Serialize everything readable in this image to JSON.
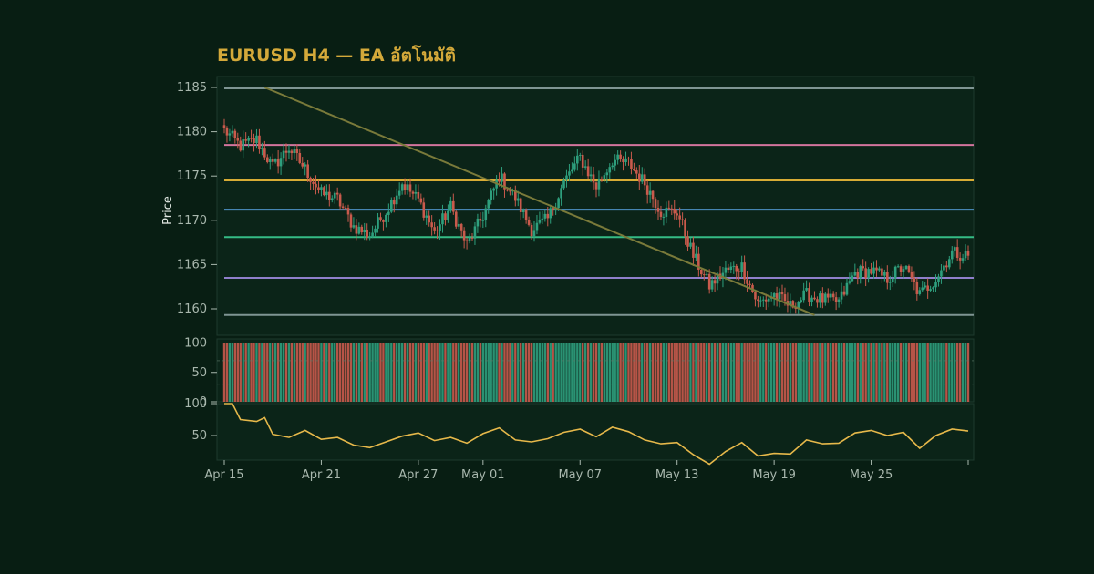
{
  "chart_data": {
    "type": "candlestick",
    "title": "EURUSD H4 — EA อัตโนมัติ",
    "ylabel": "Price",
    "ylim": [
      1157.5,
      1186.5
    ],
    "yticks": [
      "1185",
      "1180",
      "1175",
      "1170",
      "1165",
      "1160"
    ],
    "xlim": [
      "2024-04-15",
      "2024-05-31"
    ],
    "xticks": [
      {
        "date": "2024-04-15",
        "label": "Apr 15"
      },
      {
        "date": "2024-04-21",
        "label": "Apr 21"
      },
      {
        "date": "2024-04-27",
        "label": "Apr 27"
      },
      {
        "date": "2024-05-01",
        "label": "May 01"
      },
      {
        "date": "2024-05-07",
        "label": "May 07"
      },
      {
        "date": "2024-05-13",
        "label": "May 13"
      },
      {
        "date": "2024-05-19",
        "label": "May 19"
      },
      {
        "date": "2024-05-25",
        "label": "May 25"
      }
    ],
    "horizontal_levels": [
      {
        "price": 1184.9,
        "color": "#7f9593"
      },
      {
        "price": 1178.5,
        "color": "#d3759d"
      },
      {
        "price": 1174.5,
        "color": "#d8ac35"
      },
      {
        "price": 1171.2,
        "color": "#4f93c8"
      },
      {
        "price": 1168.1,
        "color": "#35bb85"
      },
      {
        "price": 1163.5,
        "color": "#8f7fcb"
      },
      {
        "price": 1159.3,
        "color": "#7f9593"
      }
    ],
    "trendline": {
      "start_date": "2024-04-17 12:00",
      "start_price": 1185.0,
      "end_date": "2024-05-21 12:00",
      "end_price": 1159.3,
      "color": "#7a7a3a"
    },
    "close_anchors": [
      {
        "date": "2024-04-15",
        "price": 1180.2
      },
      {
        "date": "2024-04-16",
        "price": 1178.4
      },
      {
        "date": "2024-04-17",
        "price": 1179.1
      },
      {
        "date": "2024-04-18",
        "price": 1176.0
      },
      {
        "date": "2024-04-19",
        "price": 1178.2
      },
      {
        "date": "2024-04-20",
        "price": 1175.8
      },
      {
        "date": "2024-04-21",
        "price": 1173.0
      },
      {
        "date": "2024-04-22",
        "price": 1172.4
      },
      {
        "date": "2024-04-23",
        "price": 1169.3
      },
      {
        "date": "2024-04-24",
        "price": 1168.3
      },
      {
        "date": "2024-04-25",
        "price": 1171.0
      },
      {
        "date": "2024-04-26",
        "price": 1174.2
      },
      {
        "date": "2024-04-27",
        "price": 1172.3
      },
      {
        "date": "2024-04-28",
        "price": 1168.6
      },
      {
        "date": "2024-04-29",
        "price": 1171.5
      },
      {
        "date": "2024-04-30",
        "price": 1167.2
      },
      {
        "date": "2024-05-01",
        "price": 1170.5
      },
      {
        "date": "2024-05-02",
        "price": 1175.0
      },
      {
        "date": "2024-05-03",
        "price": 1172.5
      },
      {
        "date": "2024-05-04",
        "price": 1169.0
      },
      {
        "date": "2024-05-05",
        "price": 1170.1
      },
      {
        "date": "2024-05-06",
        "price": 1174.3
      },
      {
        "date": "2024-05-07",
        "price": 1177.1
      },
      {
        "date": "2024-05-08",
        "price": 1173.8
      },
      {
        "date": "2024-05-09",
        "price": 1176.8
      },
      {
        "date": "2024-05-10",
        "price": 1176.4
      },
      {
        "date": "2024-05-11",
        "price": 1174.2
      },
      {
        "date": "2024-05-12",
        "price": 1171.0
      },
      {
        "date": "2024-05-13",
        "price": 1171.0
      },
      {
        "date": "2024-05-14",
        "price": 1166.0
      },
      {
        "date": "2024-05-15",
        "price": 1162.6
      },
      {
        "date": "2024-05-16",
        "price": 1164.3
      },
      {
        "date": "2024-05-17",
        "price": 1164.8
      },
      {
        "date": "2024-05-18",
        "price": 1160.6
      },
      {
        "date": "2024-05-19",
        "price": 1161.6
      },
      {
        "date": "2024-05-20",
        "price": 1160.3
      },
      {
        "date": "2024-05-21",
        "price": 1161.6
      },
      {
        "date": "2024-05-22",
        "price": 1161.0
      },
      {
        "date": "2024-05-23",
        "price": 1160.8
      },
      {
        "date": "2024-05-24",
        "price": 1164.1
      },
      {
        "date": "2024-05-25",
        "price": 1164.3
      },
      {
        "date": "2024-05-26",
        "price": 1163.4
      },
      {
        "date": "2024-05-27",
        "price": 1164.8
      },
      {
        "date": "2024-05-28",
        "price": 1161.6
      },
      {
        "date": "2024-05-29",
        "price": 1163.4
      },
      {
        "date": "2024-05-30",
        "price": 1166.4
      },
      {
        "date": "2024-05-31",
        "price": 1166.0
      }
    ],
    "colors": {
      "up": "#2e9f7d",
      "down": "#c95a4c",
      "background": "#081e13",
      "panel": "#0b2418",
      "border": "#1e3a2e"
    },
    "volume_panel": {
      "ylim": [
        0,
        100
      ],
      "yticks": [
        "100",
        "50",
        "0"
      ]
    },
    "oscillator_panel": {
      "ylim": [
        0,
        100
      ],
      "yticks": [
        "100",
        "50"
      ],
      "color": "#e6b84a",
      "series": [
        {
          "date": "2024-04-15",
          "value": 100
        },
        {
          "date": "2024-04-15 12:00",
          "value": 100
        },
        {
          "date": "2024-04-16",
          "value": 75
        },
        {
          "date": "2024-04-17",
          "value": 72
        },
        {
          "date": "2024-04-17 12:00",
          "value": 78
        },
        {
          "date": "2024-04-18",
          "value": 52
        },
        {
          "date": "2024-04-19",
          "value": 47
        },
        {
          "date": "2024-04-20",
          "value": 58
        },
        {
          "date": "2024-04-21",
          "value": 44
        },
        {
          "date": "2024-04-22",
          "value": 47
        },
        {
          "date": "2024-04-23",
          "value": 35
        },
        {
          "date": "2024-04-24",
          "value": 31
        },
        {
          "date": "2024-04-25",
          "value": 40
        },
        {
          "date": "2024-04-26",
          "value": 49
        },
        {
          "date": "2024-04-27",
          "value": 54
        },
        {
          "date": "2024-04-28",
          "value": 42
        },
        {
          "date": "2024-04-29",
          "value": 47
        },
        {
          "date": "2024-04-30",
          "value": 38
        },
        {
          "date": "2024-05-01",
          "value": 53
        },
        {
          "date": "2024-05-02",
          "value": 62
        },
        {
          "date": "2024-05-03",
          "value": 43
        },
        {
          "date": "2024-05-04",
          "value": 40
        },
        {
          "date": "2024-05-05",
          "value": 45
        },
        {
          "date": "2024-05-06",
          "value": 55
        },
        {
          "date": "2024-05-07",
          "value": 60
        },
        {
          "date": "2024-05-08",
          "value": 48
        },
        {
          "date": "2024-05-09",
          "value": 63
        },
        {
          "date": "2024-05-10",
          "value": 56
        },
        {
          "date": "2024-05-11",
          "value": 43
        },
        {
          "date": "2024-05-12",
          "value": 37
        },
        {
          "date": "2024-05-13",
          "value": 39
        },
        {
          "date": "2024-05-14",
          "value": 20
        },
        {
          "date": "2024-05-15",
          "value": 5
        },
        {
          "date": "2024-05-16",
          "value": 25
        },
        {
          "date": "2024-05-17",
          "value": 39
        },
        {
          "date": "2024-05-18",
          "value": 18
        },
        {
          "date": "2024-05-19",
          "value": 22
        },
        {
          "date": "2024-05-20",
          "value": 21
        },
        {
          "date": "2024-05-21",
          "value": 43
        },
        {
          "date": "2024-05-22",
          "value": 37
        },
        {
          "date": "2024-05-23",
          "value": 38
        },
        {
          "date": "2024-05-24",
          "value": 54
        },
        {
          "date": "2024-05-25",
          "value": 58
        },
        {
          "date": "2024-05-26",
          "value": 50
        },
        {
          "date": "2024-05-27",
          "value": 55
        },
        {
          "date": "2024-05-28",
          "value": 30
        },
        {
          "date": "2024-05-29",
          "value": 50
        },
        {
          "date": "2024-05-30",
          "value": 60
        },
        {
          "date": "2024-05-31",
          "value": 57
        }
      ]
    }
  }
}
